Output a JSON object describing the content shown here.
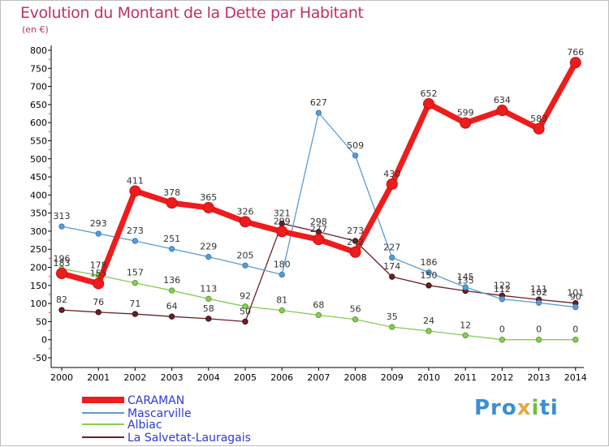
{
  "chart_data": {
    "type": "line",
    "title": "Evolution du Montant de la Dette par Habitant",
    "subtitle": "(en €)",
    "x": [
      "2000",
      "2001",
      "2002",
      "2003",
      "2004",
      "2005",
      "2006",
      "2007",
      "2008",
      "2009",
      "2010",
      "2011",
      "2012",
      "2013",
      "2014"
    ],
    "ylim": [
      -50,
      800
    ],
    "yticks": [
      -50,
      0,
      50,
      100,
      150,
      200,
      250,
      300,
      350,
      400,
      450,
      500,
      550,
      600,
      650,
      700,
      750,
      800
    ],
    "grid": false,
    "legend_position": "bottom-left",
    "series": [
      {
        "name": "CARAMAN",
        "color": "#ee1c1c",
        "values": [
          183,
          155,
          411,
          378,
          365,
          326,
          299,
          277,
          242,
          430,
          652,
          599,
          634,
          583,
          766
        ]
      },
      {
        "name": "Mascarville",
        "color": "#5b9bd1",
        "values": [
          313,
          293,
          273,
          251,
          229,
          205,
          180,
          627,
          509,
          227,
          186,
          145,
          112,
          102,
          90
        ]
      },
      {
        "name": "Albiac",
        "color": "#88cc55",
        "values": [
          196,
          178,
          157,
          136,
          113,
          92,
          81,
          68,
          56,
          35,
          24,
          12,
          0,
          0,
          0
        ]
      },
      {
        "name": "La Salvetat-Lauragais",
        "color": "#6b1f26",
        "values": [
          82,
          76,
          71,
          64,
          58,
          50,
          321,
          298,
          273,
          174,
          150,
          135,
          122,
          111,
          101
        ]
      }
    ]
  },
  "logo": {
    "p1": "Pro",
    "p2": "x",
    "p3": "i",
    "p4": "ti"
  }
}
